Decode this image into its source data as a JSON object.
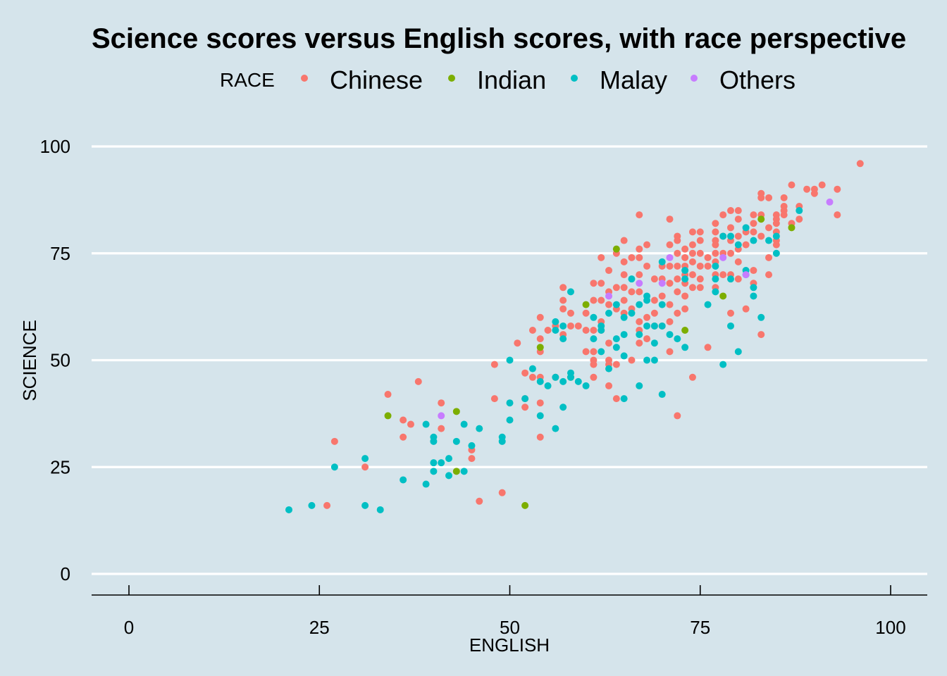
{
  "chart_data": {
    "type": "scatter",
    "title": "Science scores versus English scores, with race perspective",
    "xlabel": "ENGLISH",
    "ylabel": "SCIENCE",
    "xlim": [
      0,
      100
    ],
    "ylim": [
      0,
      100
    ],
    "x_ticks": [
      0,
      25,
      50,
      75,
      100
    ],
    "y_ticks": [
      0,
      25,
      50,
      75,
      100
    ],
    "grid": "horizontal major gridlines",
    "legend": {
      "title": "RACE",
      "position": "top",
      "entries": [
        {
          "label": "Chinese",
          "color": "#F8766D"
        },
        {
          "label": "Indian",
          "color": "#7CAE00"
        },
        {
          "label": "Malay",
          "color": "#00BFC4"
        },
        {
          "label": "Others",
          "color": "#C77CFF"
        }
      ]
    },
    "series": [
      {
        "name": "Chinese",
        "color": "#F8766D",
        "points": [
          [
            96,
            96
          ],
          [
            93,
            90
          ],
          [
            93,
            84
          ],
          [
            91,
            91
          ],
          [
            90,
            90
          ],
          [
            90,
            89
          ],
          [
            89,
            90
          ],
          [
            87,
            91
          ],
          [
            88,
            86
          ],
          [
            88,
            83
          ],
          [
            87,
            82
          ],
          [
            86,
            88
          ],
          [
            86,
            86
          ],
          [
            86,
            85
          ],
          [
            86,
            84
          ],
          [
            85,
            84
          ],
          [
            85,
            83
          ],
          [
            85,
            82
          ],
          [
            85,
            80
          ],
          [
            85,
            78
          ],
          [
            85,
            77
          ],
          [
            84,
            88
          ],
          [
            84,
            81
          ],
          [
            84,
            74
          ],
          [
            84,
            70
          ],
          [
            83,
            89
          ],
          [
            83,
            88
          ],
          [
            83,
            84
          ],
          [
            83,
            79
          ],
          [
            83,
            56
          ],
          [
            82,
            84
          ],
          [
            82,
            82
          ],
          [
            82,
            80
          ],
          [
            82,
            71
          ],
          [
            82,
            68
          ],
          [
            81,
            80
          ],
          [
            81,
            77
          ],
          [
            81,
            62
          ],
          [
            80,
            85
          ],
          [
            80,
            83
          ],
          [
            80,
            79
          ],
          [
            80,
            76
          ],
          [
            80,
            73
          ],
          [
            80,
            69
          ],
          [
            79,
            85
          ],
          [
            79,
            81
          ],
          [
            79,
            78
          ],
          [
            79,
            75
          ],
          [
            79,
            70
          ],
          [
            79,
            61
          ],
          [
            78,
            84
          ],
          [
            78,
            79
          ],
          [
            78,
            75
          ],
          [
            78,
            70
          ],
          [
            77,
            82
          ],
          [
            77,
            80
          ],
          [
            77,
            78
          ],
          [
            77,
            77
          ],
          [
            77,
            75
          ],
          [
            77,
            73
          ],
          [
            77,
            70
          ],
          [
            77,
            67
          ],
          [
            76,
            74
          ],
          [
            76,
            72
          ],
          [
            76,
            53
          ],
          [
            75,
            80
          ],
          [
            75,
            78
          ],
          [
            75,
            75
          ],
          [
            75,
            72
          ],
          [
            75,
            69
          ],
          [
            75,
            67
          ],
          [
            74,
            80
          ],
          [
            74,
            77
          ],
          [
            74,
            75
          ],
          [
            74,
            73
          ],
          [
            74,
            70
          ],
          [
            74,
            67
          ],
          [
            74,
            46
          ],
          [
            73,
            76
          ],
          [
            73,
            74
          ],
          [
            73,
            72
          ],
          [
            73,
            70
          ],
          [
            73,
            68
          ],
          [
            73,
            65
          ],
          [
            73,
            62
          ],
          [
            72,
            79
          ],
          [
            72,
            78
          ],
          [
            72,
            75
          ],
          [
            72,
            72
          ],
          [
            72,
            69
          ],
          [
            72,
            66
          ],
          [
            72,
            61
          ],
          [
            72,
            37
          ],
          [
            71,
            83
          ],
          [
            71,
            77
          ],
          [
            71,
            72
          ],
          [
            71,
            68
          ],
          [
            71,
            63
          ],
          [
            71,
            59
          ],
          [
            71,
            52
          ],
          [
            70,
            72
          ],
          [
            70,
            69
          ],
          [
            70,
            65
          ],
          [
            70,
            58
          ],
          [
            69,
            69
          ],
          [
            69,
            64
          ],
          [
            69,
            61
          ],
          [
            69,
            58
          ],
          [
            68,
            77
          ],
          [
            68,
            72
          ],
          [
            68,
            60
          ],
          [
            68,
            55
          ],
          [
            67,
            84
          ],
          [
            67,
            76
          ],
          [
            67,
            74
          ],
          [
            67,
            70
          ],
          [
            67,
            66
          ],
          [
            67,
            59
          ],
          [
            67,
            57
          ],
          [
            67,
            54
          ],
          [
            66,
            74
          ],
          [
            66,
            66
          ],
          [
            66,
            62
          ],
          [
            66,
            50
          ],
          [
            65,
            78
          ],
          [
            65,
            73
          ],
          [
            65,
            70
          ],
          [
            65,
            67
          ],
          [
            65,
            64
          ],
          [
            65,
            61
          ],
          [
            64,
            75
          ],
          [
            64,
            67
          ],
          [
            64,
            62
          ],
          [
            64,
            49
          ],
          [
            64,
            41
          ],
          [
            63,
            71
          ],
          [
            63,
            66
          ],
          [
            63,
            63
          ],
          [
            63,
            54
          ],
          [
            63,
            50
          ],
          [
            63,
            49
          ],
          [
            63,
            44
          ],
          [
            62,
            74
          ],
          [
            62,
            68
          ],
          [
            62,
            64
          ],
          [
            62,
            59
          ],
          [
            62,
            57
          ],
          [
            61,
            68
          ],
          [
            61,
            64
          ],
          [
            61,
            57
          ],
          [
            61,
            52
          ],
          [
            61,
            50
          ],
          [
            61,
            49
          ],
          [
            61,
            46
          ],
          [
            60,
            61
          ],
          [
            60,
            57
          ],
          [
            60,
            52
          ],
          [
            59,
            58
          ],
          [
            58,
            61
          ],
          [
            58,
            58
          ],
          [
            57,
            67
          ],
          [
            57,
            64
          ],
          [
            57,
            62
          ],
          [
            57,
            56
          ],
          [
            56,
            58
          ],
          [
            56,
            46
          ],
          [
            55,
            57
          ],
          [
            54,
            60
          ],
          [
            54,
            55
          ],
          [
            54,
            52
          ],
          [
            54,
            46
          ],
          [
            54,
            40
          ],
          [
            54,
            32
          ],
          [
            53,
            57
          ],
          [
            53,
            46
          ],
          [
            52,
            47
          ],
          [
            52,
            41
          ],
          [
            52,
            39
          ],
          [
            51,
            54
          ],
          [
            48,
            49
          ],
          [
            48,
            41
          ],
          [
            49,
            19
          ],
          [
            46,
            17
          ],
          [
            45,
            29
          ],
          [
            45,
            27
          ],
          [
            41,
            40
          ],
          [
            41,
            34
          ],
          [
            38,
            45
          ],
          [
            37,
            35
          ],
          [
            36,
            36
          ],
          [
            36,
            32
          ],
          [
            34,
            42
          ],
          [
            31,
            25
          ],
          [
            27,
            31
          ],
          [
            26,
            16
          ]
        ]
      },
      {
        "name": "Indian",
        "color": "#7CAE00",
        "points": [
          [
            87,
            81
          ],
          [
            83,
            83
          ],
          [
            78,
            65
          ],
          [
            73,
            57
          ],
          [
            64,
            76
          ],
          [
            60,
            63
          ],
          [
            58,
            46
          ],
          [
            54,
            53
          ],
          [
            52,
            16
          ],
          [
            43,
            38
          ],
          [
            43,
            24
          ],
          [
            34,
            37
          ]
        ]
      },
      {
        "name": "Malay",
        "color": "#00BFC4",
        "points": [
          [
            88,
            85
          ],
          [
            85,
            79
          ],
          [
            85,
            75
          ],
          [
            84,
            78
          ],
          [
            82,
            78
          ],
          [
            82,
            67
          ],
          [
            82,
            65
          ],
          [
            83,
            60
          ],
          [
            81,
            81
          ],
          [
            81,
            71
          ],
          [
            81,
            70
          ],
          [
            80,
            77
          ],
          [
            79,
            79
          ],
          [
            79,
            69
          ],
          [
            79,
            58
          ],
          [
            80,
            52
          ],
          [
            78,
            79
          ],
          [
            78,
            49
          ],
          [
            77,
            72
          ],
          [
            77,
            69
          ],
          [
            77,
            66
          ],
          [
            76,
            63
          ],
          [
            73,
            71
          ],
          [
            73,
            69
          ],
          [
            73,
            53
          ],
          [
            72,
            55
          ],
          [
            71,
            56
          ],
          [
            70,
            73
          ],
          [
            70,
            58
          ],
          [
            70,
            42
          ],
          [
            70,
            63
          ],
          [
            69,
            58
          ],
          [
            69,
            54
          ],
          [
            69,
            50
          ],
          [
            68,
            65
          ],
          [
            68,
            64
          ],
          [
            68,
            58
          ],
          [
            68,
            50
          ],
          [
            67,
            63
          ],
          [
            67,
            56
          ],
          [
            67,
            44
          ],
          [
            66,
            69
          ],
          [
            66,
            61
          ],
          [
            65,
            60
          ],
          [
            65,
            56
          ],
          [
            65,
            51
          ],
          [
            65,
            41
          ],
          [
            64,
            63
          ],
          [
            64,
            55
          ],
          [
            64,
            53
          ],
          [
            63,
            61
          ],
          [
            63,
            48
          ],
          [
            62,
            58
          ],
          [
            62,
            57
          ],
          [
            62,
            52
          ],
          [
            61,
            55
          ],
          [
            61,
            60
          ],
          [
            60,
            44
          ],
          [
            59,
            45
          ],
          [
            58,
            47
          ],
          [
            58,
            46
          ],
          [
            58,
            66
          ],
          [
            57,
            58
          ],
          [
            57,
            55
          ],
          [
            57,
            45
          ],
          [
            57,
            39
          ],
          [
            56,
            59
          ],
          [
            56,
            57
          ],
          [
            56,
            46
          ],
          [
            56,
            34
          ],
          [
            55,
            44
          ],
          [
            54,
            45
          ],
          [
            54,
            37
          ],
          [
            53,
            48
          ],
          [
            52,
            41
          ],
          [
            50,
            50
          ],
          [
            50,
            40
          ],
          [
            50,
            36
          ],
          [
            49,
            32
          ],
          [
            49,
            31
          ],
          [
            46,
            34
          ],
          [
            45,
            30
          ],
          [
            44,
            35
          ],
          [
            44,
            24
          ],
          [
            43,
            31
          ],
          [
            42,
            27
          ],
          [
            42,
            23
          ],
          [
            41,
            26
          ],
          [
            40,
            32
          ],
          [
            40,
            31
          ],
          [
            40,
            26
          ],
          [
            40,
            24
          ],
          [
            39,
            35
          ],
          [
            39,
            21
          ],
          [
            36,
            22
          ],
          [
            33,
            15
          ],
          [
            31,
            27
          ],
          [
            31,
            16
          ],
          [
            27,
            25
          ],
          [
            24,
            16
          ],
          [
            21,
            15
          ]
        ]
      },
      {
        "name": "Others",
        "color": "#C77CFF",
        "points": [
          [
            92,
            87
          ],
          [
            81,
            70
          ],
          [
            78,
            74
          ],
          [
            71,
            74
          ],
          [
            70,
            68
          ],
          [
            67,
            68
          ],
          [
            63,
            65
          ],
          [
            41,
            37
          ]
        ]
      }
    ]
  }
}
